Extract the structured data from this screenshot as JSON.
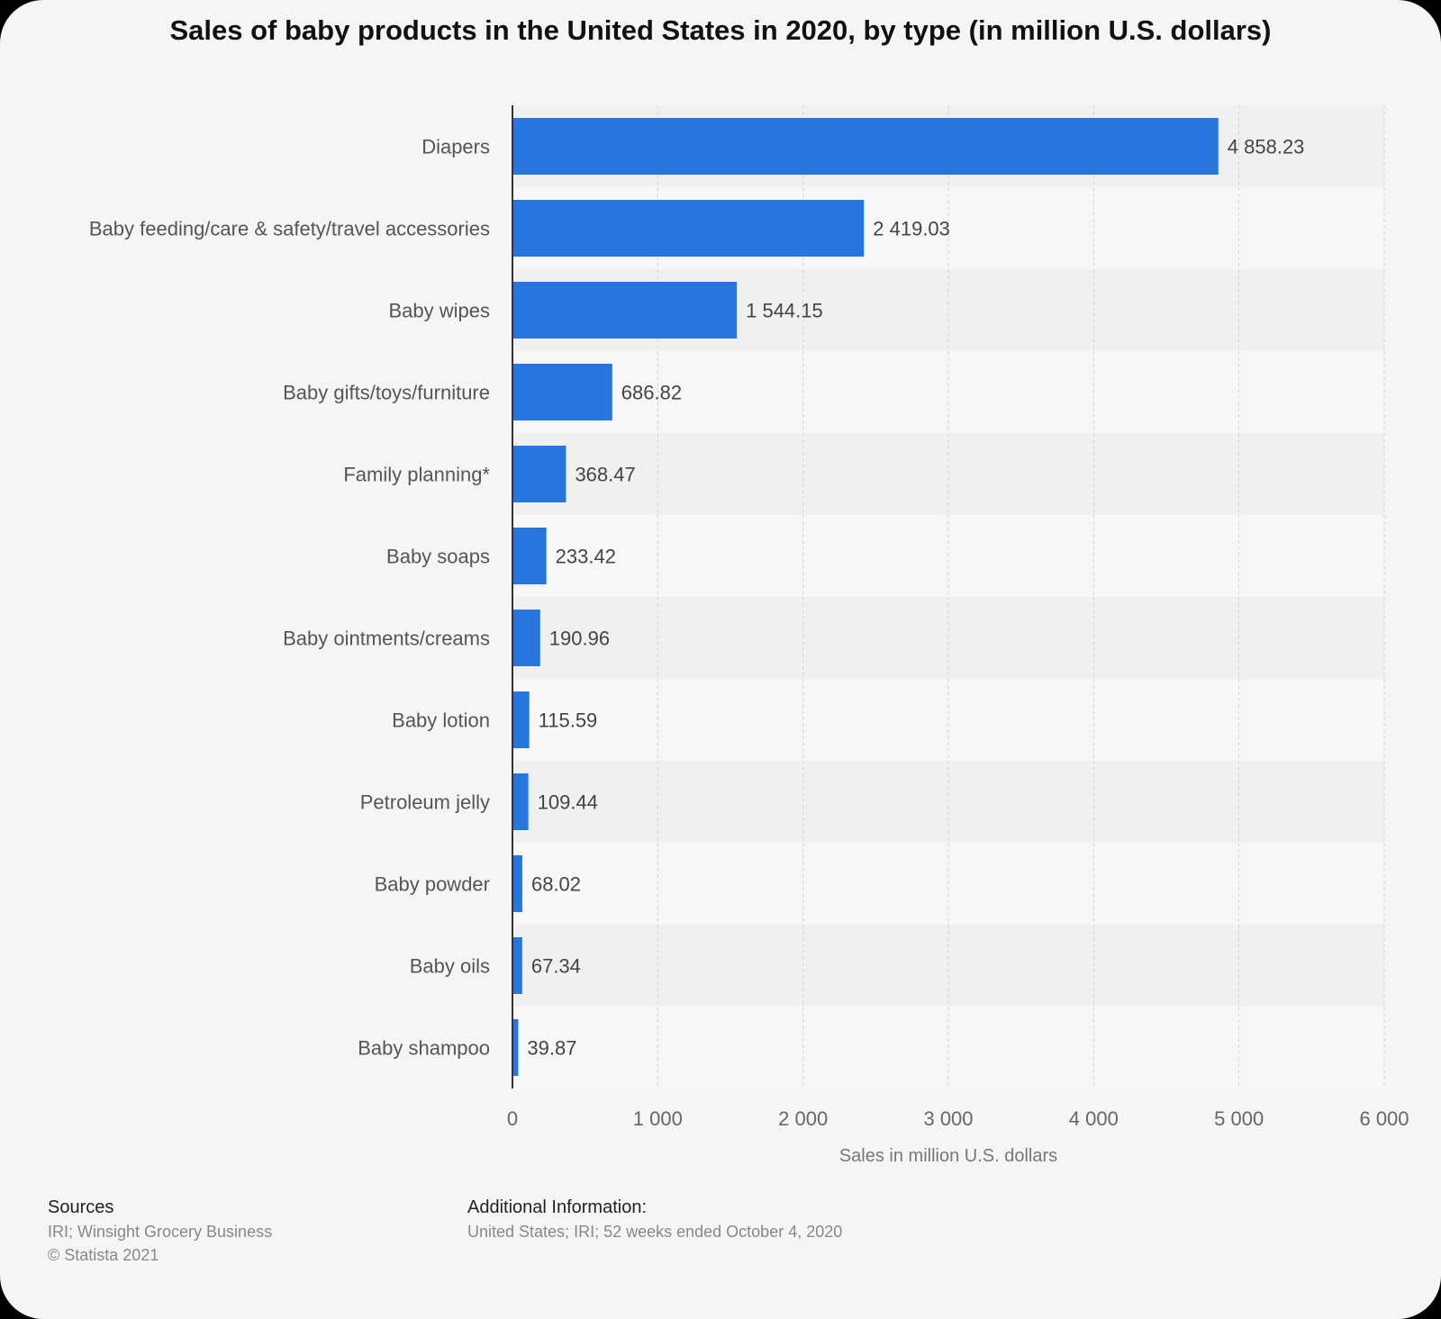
{
  "chart_data": {
    "type": "bar",
    "orientation": "horizontal",
    "title": "Sales of baby products in the United States in 2020, by type (in million U.S. dollars)",
    "categories": [
      "Diapers",
      "Baby feeding/care & safety/travel accessories",
      "Baby wipes",
      "Baby gifts/toys/furniture",
      "Family planning*",
      "Baby soaps",
      "Baby ointments/creams",
      "Baby lotion",
      "Petroleum jelly",
      "Baby powder",
      "Baby oils",
      "Baby shampoo"
    ],
    "values": [
      4858.23,
      2419.03,
      1544.15,
      686.82,
      368.47,
      233.42,
      190.96,
      115.59,
      109.44,
      68.02,
      67.34,
      39.87
    ],
    "value_labels": [
      "4 858.23",
      "2 419.03",
      "1 544.15",
      "686.82",
      "368.47",
      "233.42",
      "190.96",
      "115.59",
      "109.44",
      "68.02",
      "67.34",
      "39.87"
    ],
    "xlabel": "Sales in million U.S. dollars",
    "ylabel": "",
    "xlim": [
      0,
      6000
    ],
    "xticks": [
      0,
      1000,
      2000,
      3000,
      4000,
      5000,
      6000
    ],
    "xtick_labels": [
      "0",
      "1 000",
      "2 000",
      "3 000",
      "4 000",
      "5 000",
      "6 000"
    ],
    "grid": true,
    "bar_color": "#2876dd"
  },
  "footer": {
    "sources_heading": "Sources",
    "sources_line1": "IRI; Winsight Grocery Business",
    "sources_line2": "© Statista 2021",
    "info_heading": "Additional Information:",
    "info_text": "United States; IRI; 52 weeks ended October 4, 2020"
  }
}
